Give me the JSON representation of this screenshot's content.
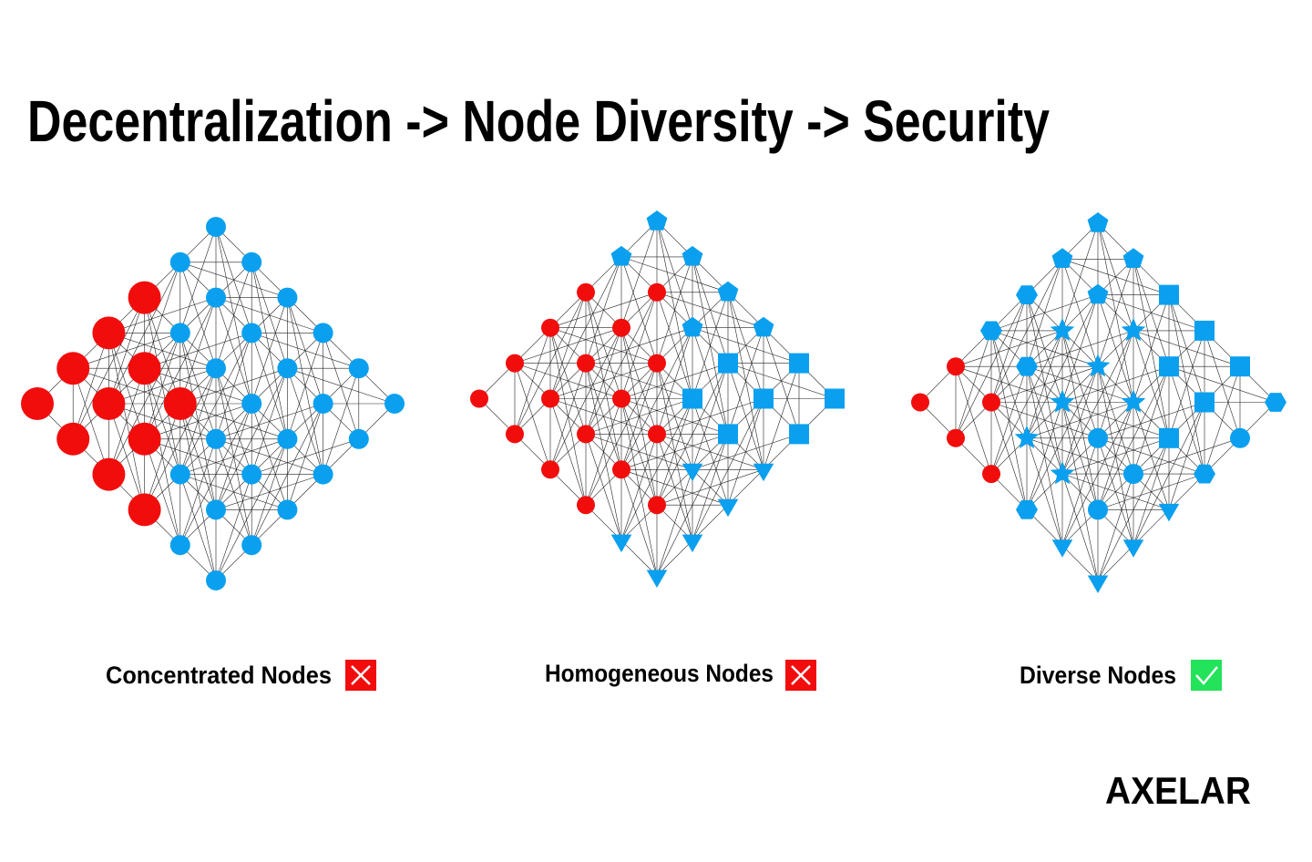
{
  "title": "Decentralization -> Node Diversity -> Security",
  "panels": [
    {
      "label": "Concentrated Nodes"
    },
    {
      "label": "Homogeneous Nodes"
    },
    {
      "label": "Diverse Nodes"
    }
  ],
  "logo": "AXELAR"
}
